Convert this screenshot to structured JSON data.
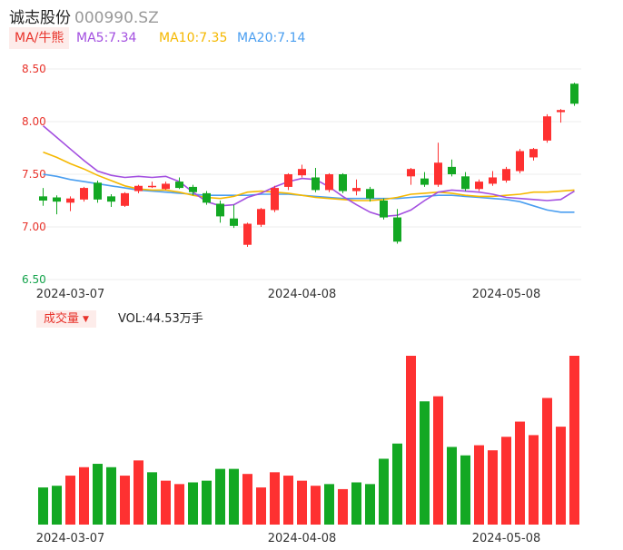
{
  "header": {
    "name": "诚志股份",
    "code": "000990.SZ"
  },
  "ma_bar": {
    "tag": "MA/牛熊",
    "ma5": {
      "label": "MA5:7.34",
      "color": "#a34fe0"
    },
    "ma10": {
      "label": "MA10:7.35",
      "color": "#f5b800"
    },
    "ma20": {
      "label": "MA20:7.14",
      "color": "#4a9ef0"
    }
  },
  "volume_bar": {
    "tag": "成交量",
    "value": "VOL:44.53万手"
  },
  "colors": {
    "up": "#fe3131",
    "down": "#13a823",
    "grid": "#ececec"
  },
  "chart_data": [
    {
      "type": "candlestick",
      "y_ticks": [
        "8.50",
        "8.00",
        "7.50",
        "7.00",
        "6.50"
      ],
      "ylim": [
        6.5,
        8.5
      ],
      "x_tick_labels": [
        {
          "index": 2,
          "label": "2024-03-07"
        },
        {
          "index": 19,
          "label": "2024-04-08"
        },
        {
          "index": 34,
          "label": "2024-05-08"
        }
      ],
      "candles": [
        {
          "o": 7.29,
          "c": 7.25,
          "h": 7.37,
          "l": 7.2
        },
        {
          "o": 7.28,
          "c": 7.24,
          "h": 7.3,
          "l": 7.12
        },
        {
          "o": 7.23,
          "c": 7.27,
          "h": 7.29,
          "l": 7.15
        },
        {
          "o": 7.26,
          "c": 7.37,
          "h": 7.38,
          "l": 7.24
        },
        {
          "o": 7.42,
          "c": 7.26,
          "h": 7.44,
          "l": 7.23
        },
        {
          "o": 7.29,
          "c": 7.24,
          "h": 7.31,
          "l": 7.19
        },
        {
          "o": 7.2,
          "c": 7.32,
          "h": 7.33,
          "l": 7.19
        },
        {
          "o": 7.34,
          "c": 7.39,
          "h": 7.4,
          "l": 7.32
        },
        {
          "o": 7.38,
          "c": 7.39,
          "h": 7.43,
          "l": 7.37
        },
        {
          "o": 7.36,
          "c": 7.41,
          "h": 7.43,
          "l": 7.35
        },
        {
          "o": 7.43,
          "c": 7.37,
          "h": 7.47,
          "l": 7.36
        },
        {
          "o": 7.38,
          "c": 7.33,
          "h": 7.4,
          "l": 7.3
        },
        {
          "o": 7.32,
          "c": 7.23,
          "h": 7.34,
          "l": 7.21
        },
        {
          "o": 7.22,
          "c": 7.1,
          "h": 7.25,
          "l": 7.04
        },
        {
          "o": 7.08,
          "c": 7.01,
          "h": 7.21,
          "l": 6.99
        },
        {
          "o": 6.83,
          "c": 7.03,
          "h": 7.04,
          "l": 6.81
        },
        {
          "o": 7.02,
          "c": 7.17,
          "h": 7.18,
          "l": 7.0
        },
        {
          "o": 7.16,
          "c": 7.37,
          "h": 7.39,
          "l": 7.14
        },
        {
          "o": 7.38,
          "c": 7.5,
          "h": 7.51,
          "l": 7.35
        },
        {
          "o": 7.49,
          "c": 7.55,
          "h": 7.59,
          "l": 7.47
        },
        {
          "o": 7.47,
          "c": 7.35,
          "h": 7.56,
          "l": 7.33
        },
        {
          "o": 7.35,
          "c": 7.5,
          "h": 7.51,
          "l": 7.33
        },
        {
          "o": 7.5,
          "c": 7.34,
          "h": 7.51,
          "l": 7.32
        },
        {
          "o": 7.34,
          "c": 7.37,
          "h": 7.45,
          "l": 7.3
        },
        {
          "o": 7.36,
          "c": 7.27,
          "h": 7.38,
          "l": 7.24
        },
        {
          "o": 7.25,
          "c": 7.09,
          "h": 7.27,
          "l": 7.07
        },
        {
          "o": 7.09,
          "c": 6.86,
          "h": 7.17,
          "l": 6.84
        },
        {
          "o": 7.48,
          "c": 7.55,
          "h": 7.56,
          "l": 7.4
        },
        {
          "o": 7.46,
          "c": 7.4,
          "h": 7.52,
          "l": 7.38
        },
        {
          "o": 7.4,
          "c": 7.61,
          "h": 7.8,
          "l": 7.38
        },
        {
          "o": 7.57,
          "c": 7.5,
          "h": 7.64,
          "l": 7.48
        },
        {
          "o": 7.48,
          "c": 7.36,
          "h": 7.52,
          "l": 7.34
        },
        {
          "o": 7.36,
          "c": 7.43,
          "h": 7.45,
          "l": 7.34
        },
        {
          "o": 7.41,
          "c": 7.47,
          "h": 7.53,
          "l": 7.39
        },
        {
          "o": 7.44,
          "c": 7.55,
          "h": 7.57,
          "l": 7.42
        },
        {
          "o": 7.53,
          "c": 7.72,
          "h": 7.74,
          "l": 7.51
        },
        {
          "o": 7.66,
          "c": 7.74,
          "h": 7.75,
          "l": 7.63
        },
        {
          "o": 7.82,
          "c": 8.05,
          "h": 8.07,
          "l": 7.8
        },
        {
          "o": 8.09,
          "c": 8.11,
          "h": 8.12,
          "l": 7.99
        },
        {
          "o": 8.36,
          "c": 8.17,
          "h": 8.37,
          "l": 8.15
        }
      ],
      "ma5": [
        7.96,
        7.85,
        7.74,
        7.63,
        7.53,
        7.49,
        7.47,
        7.48,
        7.47,
        7.48,
        7.43,
        7.33,
        7.24,
        7.2,
        7.21,
        7.28,
        7.32,
        7.38,
        7.43,
        7.46,
        7.45,
        7.38,
        7.29,
        7.21,
        7.14,
        7.1,
        7.11,
        7.16,
        7.25,
        7.33,
        7.35,
        7.34,
        7.33,
        7.31,
        7.28,
        7.27,
        7.26,
        7.25,
        7.26,
        7.34
      ],
      "ma10": [
        7.71,
        7.66,
        7.6,
        7.55,
        7.49,
        7.44,
        7.39,
        7.36,
        7.35,
        7.35,
        7.33,
        7.3,
        7.28,
        7.27,
        7.29,
        7.33,
        7.34,
        7.33,
        7.32,
        7.3,
        7.28,
        7.27,
        7.26,
        7.25,
        7.25,
        7.26,
        7.28,
        7.31,
        7.32,
        7.33,
        7.32,
        7.3,
        7.29,
        7.29,
        7.3,
        7.31,
        7.33,
        7.33,
        7.34,
        7.35
      ],
      "ma20": [
        7.5,
        7.48,
        7.45,
        7.43,
        7.41,
        7.39,
        7.37,
        7.35,
        7.34,
        7.33,
        7.32,
        7.31,
        7.3,
        7.3,
        7.3,
        7.3,
        7.31,
        7.31,
        7.31,
        7.3,
        7.29,
        7.28,
        7.27,
        7.27,
        7.27,
        7.27,
        7.27,
        7.28,
        7.29,
        7.3,
        7.3,
        7.29,
        7.28,
        7.27,
        7.26,
        7.24,
        7.2,
        7.16,
        7.14,
        7.14
      ]
    },
    {
      "type": "bar",
      "name": "成交量",
      "values": [
        22,
        23,
        29,
        34,
        36,
        34,
        29,
        38,
        31,
        26,
        24,
        25,
        26,
        33,
        33,
        30,
        22,
        31,
        29,
        26,
        23,
        24,
        21,
        25,
        24,
        39,
        48,
        100,
        73,
        76,
        46,
        41,
        47,
        44,
        52,
        61,
        53,
        75,
        58,
        100
      ],
      "colors": [
        "down",
        "down",
        "up",
        "up",
        "down",
        "down",
        "up",
        "up",
        "down",
        "up",
        "up",
        "down",
        "down",
        "down",
        "down",
        "up",
        "up",
        "up",
        "up",
        "up",
        "up",
        "down",
        "up",
        "down",
        "down",
        "down",
        "down",
        "up",
        "down",
        "up",
        "down",
        "down",
        "up",
        "up",
        "up",
        "up",
        "up",
        "up",
        "up",
        "up"
      ]
    }
  ]
}
